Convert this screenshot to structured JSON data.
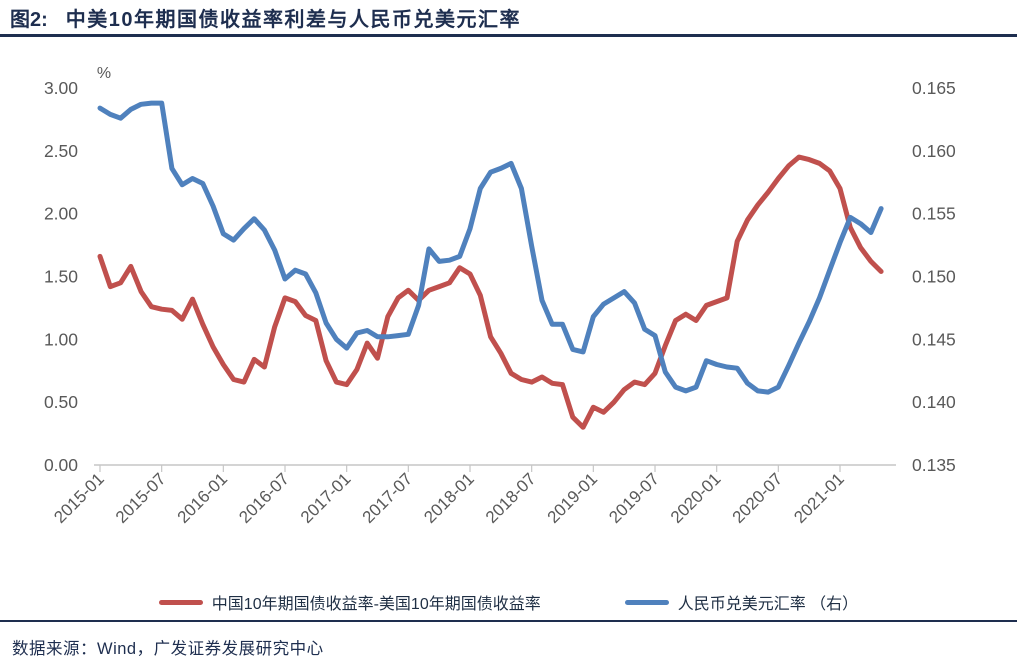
{
  "figure": {
    "label": "图2:",
    "title": "中美10年期国债收益率利差与人民币兑美元汇率"
  },
  "source_note": "数据来源：Wind，广发证券发展研究中心",
  "colors": {
    "navy_accent": "#1e2e4f",
    "spread_red": "#c0504d",
    "fx_blue": "#4f81bd",
    "axis_text": "#595959",
    "axis_line": "#c6c6c6"
  },
  "chart_data": {
    "type": "line",
    "unit_label": "%",
    "x_start": "2015-01",
    "x_end": "2021-05",
    "x_frequency": "monthly",
    "x_tick_labels": [
      "2015-01",
      "2015-07",
      "2016-01",
      "2016-07",
      "2017-01",
      "2017-07",
      "2018-01",
      "2018-07",
      "2019-01",
      "2019-07",
      "2020-01",
      "2020-07",
      "2021-01"
    ],
    "left_axis": {
      "min": 0.0,
      "max": 3.0,
      "ticks": [
        "3.00",
        "2.50",
        "2.00",
        "1.50",
        "1.00",
        "0.50",
        "0.00"
      ]
    },
    "right_axis": {
      "min": 0.135,
      "max": 0.165,
      "ticks": [
        "0.165",
        "0.160",
        "0.155",
        "0.150",
        "0.145",
        "0.140",
        "0.135"
      ]
    },
    "grid": "off",
    "legend_position": "bottom",
    "series": [
      {
        "name": "中国10年期国债收益率-美国10年期国债收益率",
        "axis": "left",
        "color": "#c0504d",
        "values": [
          1.66,
          1.42,
          1.45,
          1.58,
          1.38,
          1.26,
          1.24,
          1.23,
          1.16,
          1.32,
          1.12,
          0.94,
          0.8,
          0.68,
          0.66,
          0.84,
          0.78,
          1.1,
          1.33,
          1.3,
          1.19,
          1.15,
          0.83,
          0.66,
          0.64,
          0.76,
          0.97,
          0.85,
          1.18,
          1.33,
          1.39,
          1.31,
          1.39,
          1.42,
          1.45,
          1.57,
          1.52,
          1.35,
          1.02,
          0.89,
          0.73,
          0.68,
          0.66,
          0.7,
          0.65,
          0.64,
          0.38,
          0.3,
          0.46,
          0.42,
          0.5,
          0.6,
          0.66,
          0.64,
          0.73,
          0.95,
          1.15,
          1.2,
          1.15,
          1.27,
          1.3,
          1.33,
          1.78,
          1.95,
          2.07,
          2.17,
          2.28,
          2.38,
          2.45,
          2.43,
          2.4,
          2.34,
          2.2,
          1.89,
          1.73,
          1.62,
          1.54
        ]
      },
      {
        "name": "人民币兑美元汇率 （右）",
        "axis": "right",
        "color": "#4f81bd",
        "values": [
          0.1634,
          0.1629,
          0.1626,
          0.1633,
          0.1637,
          0.1638,
          0.1638,
          0.1586,
          0.1573,
          0.1578,
          0.1574,
          0.1556,
          0.1534,
          0.1529,
          0.1538,
          0.1546,
          0.1537,
          0.1521,
          0.1498,
          0.1505,
          0.1502,
          0.1487,
          0.1463,
          0.145,
          0.1443,
          0.1455,
          0.1457,
          0.1452,
          0.1452,
          0.1453,
          0.1454,
          0.1477,
          0.1522,
          0.1512,
          0.1513,
          0.1516,
          0.1538,
          0.157,
          0.1583,
          0.1586,
          0.159,
          0.157,
          0.1524,
          0.1481,
          0.1462,
          0.1462,
          0.1442,
          0.144,
          0.1468,
          0.1478,
          0.1483,
          0.1488,
          0.1479,
          0.1458,
          0.1453,
          0.1424,
          0.1412,
          0.1409,
          0.1412,
          0.1433,
          0.143,
          0.1428,
          0.1427,
          0.1415,
          0.1409,
          0.1408,
          0.1412,
          0.1429,
          0.1447,
          0.1464,
          0.1483,
          0.1505,
          0.1527,
          0.1547,
          0.1542,
          0.1535,
          0.1554
        ]
      }
    ]
  }
}
